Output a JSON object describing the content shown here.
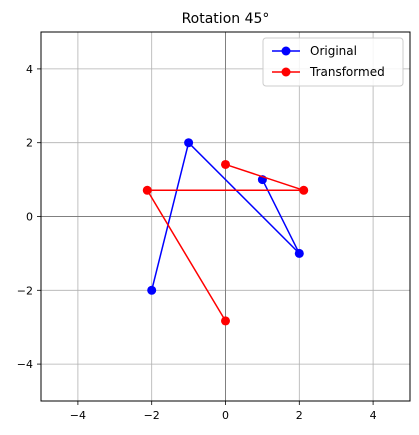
{
  "chart_data": {
    "type": "line",
    "title": "Rotation 45°",
    "xlabel": "",
    "ylabel": "",
    "xlim": [
      -5,
      5
    ],
    "ylim": [
      -5,
      5
    ],
    "xticks": [
      -4,
      -2,
      0,
      2,
      4
    ],
    "yticks": [
      -4,
      -2,
      0,
      2,
      4
    ],
    "xtick_labels": [
      "−4",
      "−2",
      "0",
      "2",
      "4"
    ],
    "ytick_labels": [
      "−4",
      "−2",
      "0",
      "2",
      "4"
    ],
    "grid": true,
    "legend_position": "top-right",
    "series": [
      {
        "name": "Original",
        "color": "#0000ff",
        "marker": "circle",
        "points": [
          [
            1,
            1
          ],
          [
            2,
            -1
          ],
          [
            -1,
            2
          ],
          [
            -2,
            -2
          ]
        ]
      },
      {
        "name": "Transformed",
        "color": "#ff0000",
        "marker": "circle",
        "points": [
          [
            0,
            1.41
          ],
          [
            2.12,
            0.71
          ],
          [
            -2.12,
            0.71
          ],
          [
            0,
            -2.83
          ]
        ]
      }
    ]
  }
}
